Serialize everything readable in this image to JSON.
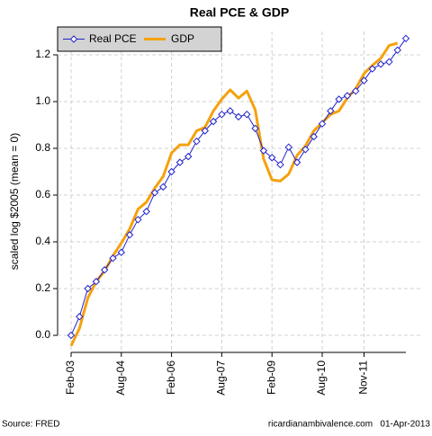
{
  "chart_data": {
    "type": "line",
    "title": "Real PCE & GDP",
    "y_label": "scaled log $2005 (mean = 0)",
    "source": "Source: FRED",
    "credit": "ricardianambivalence.com   01-Apr-2013",
    "categories": [
      "Feb-03",
      null,
      null,
      null,
      null,
      null,
      "Aug-04",
      null,
      null,
      null,
      null,
      null,
      "Feb-06",
      null,
      null,
      null,
      null,
      null,
      "Aug-07",
      null,
      null,
      null,
      null,
      null,
      "Feb-09",
      null,
      null,
      null,
      null,
      null,
      "Aug-10",
      null,
      null,
      null,
      null,
      "Nov-11",
      null,
      null,
      null,
      null,
      null
    ],
    "series": [
      {
        "name": "Real PCE",
        "color": "#2222cc",
        "values": [
          0.0,
          0.08,
          0.2,
          0.23,
          0.28,
          0.33,
          0.355,
          0.43,
          0.495,
          0.53,
          0.61,
          0.635,
          0.7,
          0.74,
          0.765,
          0.83,
          0.875,
          0.915,
          0.945,
          0.96,
          0.935,
          0.945,
          0.885,
          0.79,
          0.76,
          0.73,
          0.805,
          0.74,
          0.795,
          0.85,
          0.905,
          0.96,
          1.01,
          1.025,
          1.045,
          1.09,
          1.14,
          1.16,
          1.17,
          1.22,
          1.27
        ]
      },
      {
        "name": "GDP",
        "color": "#f5a10c",
        "values": [
          -0.045,
          0.03,
          0.16,
          0.23,
          0.275,
          0.34,
          0.395,
          0.455,
          0.54,
          0.57,
          0.63,
          0.68,
          0.78,
          0.815,
          0.815,
          0.875,
          0.89,
          0.96,
          1.01,
          1.05,
          1.015,
          1.045,
          0.965,
          0.755,
          0.665,
          0.66,
          0.69,
          0.77,
          0.81,
          0.875,
          0.91,
          0.945,
          0.96,
          1.015,
          1.055,
          1.12,
          1.155,
          1.185,
          1.24,
          1.25,
          null
        ]
      }
    ],
    "ylim": [
      -0.073,
      1.3
    ],
    "yticks": [
      {
        "value": 0,
        "label": "0.0"
      },
      0.2,
      0.4,
      0.6,
      0.8,
      {
        "value": 1,
        "label": "1.0"
      },
      1.2
    ],
    "grid": true,
    "legend": "top-left"
  }
}
